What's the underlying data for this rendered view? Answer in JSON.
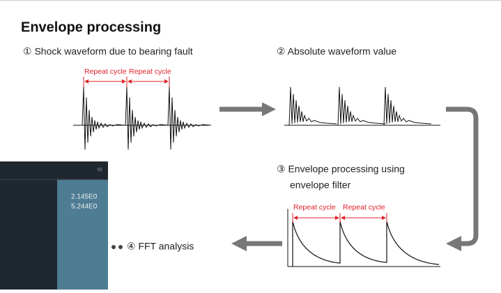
{
  "title": "Envelope processing",
  "steps": [
    {
      "label": "① Shock waveform due to bearing fault",
      "cycles": [
        "Repeat cycle",
        "Repeat cycle"
      ]
    },
    {
      "label": "② Absolute waveform value"
    },
    {
      "label_lines": [
        "③ Envelope processing using",
        "envelope filter"
      ],
      "cycles": [
        "Repeat cycle",
        "Repeat cycle"
      ]
    },
    {
      "label": "④ FFT analysis"
    }
  ],
  "screenshot": {
    "tag": "02",
    "values": [
      "2.145E0",
      "5.244E0"
    ]
  }
}
